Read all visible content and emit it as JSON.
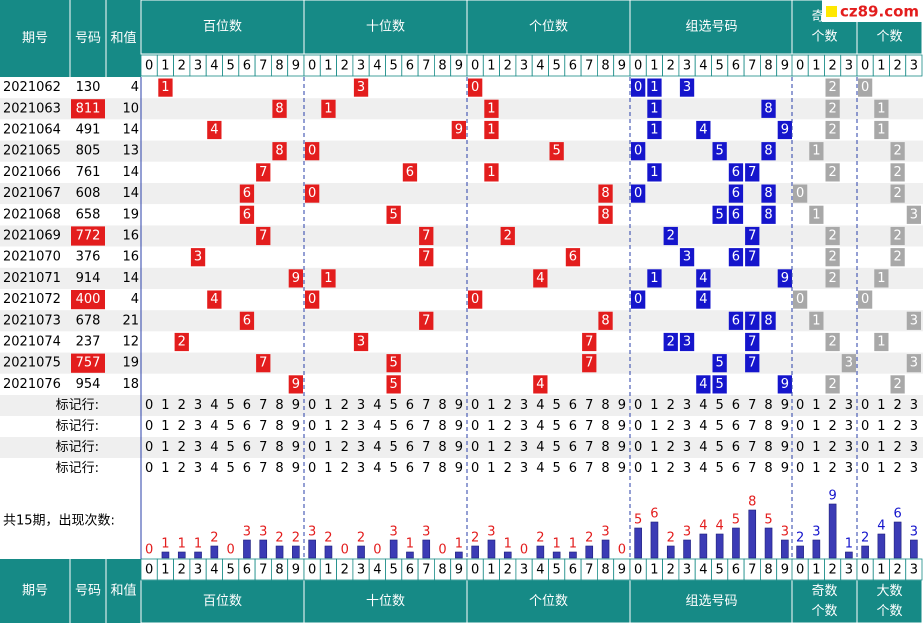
{
  "logo": "cz89.com",
  "header": {
    "columns": [
      "期号",
      "号码",
      "和值"
    ],
    "groups": [
      "百位数",
      "十位数",
      "个位数",
      "组选号码",
      [
        "奇数",
        "个数"
      ],
      [
        "大数",
        "个数"
      ]
    ]
  },
  "digits": [
    0,
    1,
    2,
    3,
    4,
    5,
    6,
    7,
    8,
    9
  ],
  "count_digits": [
    0,
    1,
    2,
    3
  ],
  "rows": [
    {
      "issue": "2021062",
      "number": "130",
      "sum": 4,
      "highlight": false,
      "hundreds": 1,
      "tens": 3,
      "units": 0,
      "group": [
        0,
        1,
        3
      ],
      "odd": 2,
      "big": 0
    },
    {
      "issue": "2021063",
      "number": "811",
      "sum": 10,
      "highlight": true,
      "hundreds": 8,
      "tens": 1,
      "units": 1,
      "group": [
        1,
        8
      ],
      "odd": 2,
      "big": 1
    },
    {
      "issue": "2021064",
      "number": "491",
      "sum": 14,
      "highlight": false,
      "hundreds": 4,
      "tens": 9,
      "units": 1,
      "group": [
        1,
        4,
        9
      ],
      "odd": 2,
      "big": 1
    },
    {
      "issue": "2021065",
      "number": "805",
      "sum": 13,
      "highlight": false,
      "hundreds": 8,
      "tens": 0,
      "units": 5,
      "group": [
        0,
        5,
        8
      ],
      "odd": 1,
      "big": 2
    },
    {
      "issue": "2021066",
      "number": "761",
      "sum": 14,
      "highlight": false,
      "hundreds": 7,
      "tens": 6,
      "units": 1,
      "group": [
        1,
        6,
        7
      ],
      "odd": 2,
      "big": 2
    },
    {
      "issue": "2021067",
      "number": "608",
      "sum": 14,
      "highlight": false,
      "hundreds": 6,
      "tens": 0,
      "units": 8,
      "group": [
        0,
        6,
        8
      ],
      "odd": 0,
      "big": 2
    },
    {
      "issue": "2021068",
      "number": "658",
      "sum": 19,
      "highlight": false,
      "hundreds": 6,
      "tens": 5,
      "units": 8,
      "group": [
        5,
        6,
        8
      ],
      "odd": 1,
      "big": 3
    },
    {
      "issue": "2021069",
      "number": "772",
      "sum": 16,
      "highlight": true,
      "hundreds": 7,
      "tens": 7,
      "units": 2,
      "group": [
        2,
        7
      ],
      "odd": 2,
      "big": 2
    },
    {
      "issue": "2021070",
      "number": "376",
      "sum": 16,
      "highlight": false,
      "hundreds": 3,
      "tens": 7,
      "units": 6,
      "group": [
        3,
        6,
        7
      ],
      "odd": 2,
      "big": 2
    },
    {
      "issue": "2021071",
      "number": "914",
      "sum": 14,
      "highlight": false,
      "hundreds": 9,
      "tens": 1,
      "units": 4,
      "group": [
        1,
        4,
        9
      ],
      "odd": 2,
      "big": 1
    },
    {
      "issue": "2021072",
      "number": "400",
      "sum": 4,
      "highlight": true,
      "hundreds": 4,
      "tens": 0,
      "units": 0,
      "group": [
        0,
        4
      ],
      "odd": 0,
      "big": 0
    },
    {
      "issue": "2021073",
      "number": "678",
      "sum": 21,
      "highlight": false,
      "hundreds": 6,
      "tens": 7,
      "units": 8,
      "group": [
        6,
        7,
        8
      ],
      "odd": 1,
      "big": 3
    },
    {
      "issue": "2021074",
      "number": "237",
      "sum": 12,
      "highlight": false,
      "hundreds": 2,
      "tens": 3,
      "units": 7,
      "group": [
        2,
        3,
        7
      ],
      "odd": 2,
      "big": 1
    },
    {
      "issue": "2021075",
      "number": "757",
      "sum": 19,
      "highlight": true,
      "hundreds": 7,
      "tens": 5,
      "units": 7,
      "group": [
        5,
        7
      ],
      "odd": 3,
      "big": 3
    },
    {
      "issue": "2021076",
      "number": "954",
      "sum": 18,
      "highlight": false,
      "hundreds": 9,
      "tens": 5,
      "units": 4,
      "group": [
        4,
        5,
        9
      ],
      "odd": 2,
      "big": 2
    }
  ],
  "marker_rows": [
    "标记行:",
    "标记行:",
    "标记行:",
    "标记行:"
  ],
  "frequency": {
    "label": "共15期，出现次数:",
    "hundreds": [
      0,
      1,
      1,
      1,
      2,
      0,
      3,
      3,
      2,
      2
    ],
    "tens": [
      3,
      2,
      0,
      2,
      0,
      3,
      1,
      3,
      0,
      1
    ],
    "units": [
      2,
      3,
      1,
      0,
      2,
      1,
      1,
      2,
      3,
      0
    ],
    "group": [
      5,
      6,
      2,
      3,
      4,
      4,
      5,
      8,
      5,
      3
    ],
    "odd": [
      2,
      3,
      9,
      1
    ],
    "big": [
      2,
      4,
      6,
      3
    ]
  }
}
